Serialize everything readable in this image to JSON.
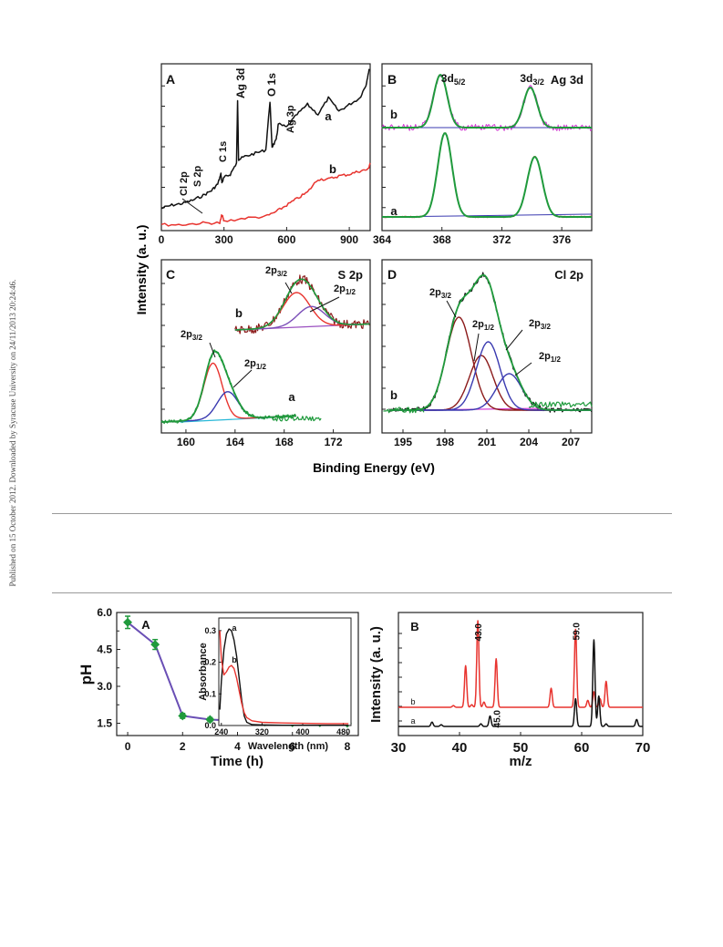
{
  "sidebar_note": "Published on 15 October 2012. Downloaded by Syracuse University on 24/11/2013 20:24:46.",
  "colors": {
    "black": "#111111",
    "red": "#e8342f",
    "green": "#1f9a3c",
    "blue": "#3a3ab0",
    "darkred": "#8b1a1a",
    "magenta": "#d43fd4",
    "purple": "#9a4fc0",
    "cyan": "#28b8d8",
    "violet": "#7b4fb8"
  },
  "chart_data": [
    {
      "panel": "A",
      "type": "line",
      "xlim": [
        0,
        1000
      ],
      "xticks": [
        0,
        300,
        600,
        900
      ],
      "series": [
        {
          "name": "a",
          "x": [
            0,
            50,
            100,
            150,
            200,
            240,
            270,
            285,
            290,
            300,
            330,
            360,
            365,
            370,
            400,
            450,
            500,
            520,
            530,
            550,
            560,
            600,
            650,
            700,
            750,
            800,
            850,
            900,
            950,
            980,
            995
          ],
          "y": [
            0.12,
            0.14,
            0.15,
            0.17,
            0.2,
            0.23,
            0.27,
            0.33,
            0.28,
            0.31,
            0.33,
            0.4,
            0.78,
            0.42,
            0.44,
            0.46,
            0.48,
            0.78,
            0.5,
            0.54,
            0.64,
            0.62,
            0.7,
            0.76,
            0.7,
            0.8,
            0.72,
            0.76,
            0.8,
            0.88,
            0.98
          ]
        },
        {
          "name": "b",
          "x": [
            0,
            100,
            200,
            280,
            290,
            300,
            400,
            500,
            550,
            600,
            650,
            700,
            750,
            800,
            850,
            900,
            950,
            990,
            1000
          ],
          "y": [
            0.02,
            0.02,
            0.03,
            0.03,
            0.08,
            0.04,
            0.06,
            0.07,
            0.1,
            0.14,
            0.18,
            0.22,
            0.3,
            0.3,
            0.32,
            0.33,
            0.35,
            0.36,
            0.4
          ]
        }
      ],
      "annotations": [
        "Cl 2p",
        "S 2p",
        "C 1s",
        "Ag 3d",
        "O 1s",
        "Ag 3p",
        "a",
        "b"
      ]
    },
    {
      "panel": "B",
      "title": "Ag 3d",
      "type": "line",
      "xlim": [
        364,
        378
      ],
      "xticks": [
        364,
        368,
        372,
        376
      ],
      "peaks": [
        {
          "curve": "b",
          "center": 367.9,
          "label": "3d",
          "sub": "5/2"
        },
        {
          "curve": "b",
          "center": 373.9,
          "label": "3d",
          "sub": "3/2"
        },
        {
          "curve": "a",
          "center": 368.2,
          "height": 0.62
        },
        {
          "curve": "a",
          "center": 374.2,
          "height": 0.44
        }
      ],
      "labels": [
        "a",
        "b"
      ]
    },
    {
      "panel": "C",
      "title": "S 2p",
      "type": "line",
      "xlim": [
        158,
        175
      ],
      "xticks": [
        160,
        164,
        168,
        172
      ],
      "peaks": [
        {
          "curve": "b",
          "center": 169.0,
          "label": "2p",
          "sub": "3/2"
        },
        {
          "curve": "b",
          "center": 170.2,
          "label": "2p",
          "sub": "1/2"
        },
        {
          "curve": "a",
          "center": 162.2,
          "label": "2p",
          "sub": "3/2"
        },
        {
          "curve": "a",
          "center": 163.4,
          "label": "2p",
          "sub": "1/2"
        }
      ],
      "labels": [
        "a",
        "b"
      ]
    },
    {
      "panel": "D",
      "title": "Cl 2p",
      "type": "line",
      "xlim": [
        193.5,
        208.5
      ],
      "xticks": [
        195,
        198,
        201,
        204,
        207
      ],
      "peaks": [
        {
          "center": 199.0,
          "label": "2p",
          "sub": "3/2"
        },
        {
          "center": 200.6,
          "label": "2p",
          "sub": "1/2"
        },
        {
          "center": 201.1,
          "label": "2p",
          "sub": "3/2"
        },
        {
          "center": 202.6,
          "label": "2p",
          "sub": "1/2"
        }
      ],
      "labels": [
        "b"
      ]
    },
    {
      "panel": "A",
      "type": "line",
      "xlabel": "Time (h)",
      "ylabel": "pH",
      "xlim": [
        -0.4,
        8.4
      ],
      "ylim": [
        1.0,
        6.0
      ],
      "xticks": [
        0,
        2,
        4,
        6,
        8
      ],
      "yticks": [
        "1.5",
        "3.0",
        "4.5",
        "6.0"
      ],
      "x": [
        0,
        1,
        2,
        3,
        4,
        5,
        6,
        7,
        8
      ],
      "y": [
        5.6,
        4.7,
        1.8,
        1.65,
        1.6,
        1.55,
        1.52,
        1.52,
        1.5
      ],
      "err": [
        0.25,
        0.2,
        0.1,
        0.08,
        0.08,
        0.06,
        0.06,
        0.06,
        0.06
      ],
      "inset": {
        "xlabel": "Wavelength (nm)",
        "ylabel": "Absorbance",
        "xlim": [
          235,
          495
        ],
        "ylim": [
          0,
          0.34
        ],
        "xticks": [
          240,
          320,
          400,
          480
        ],
        "yticks": [
          "0.0",
          "0.1",
          "0.2",
          "0.3"
        ],
        "series": [
          {
            "name": "a",
            "x": [
              237,
              240,
              245,
              250,
              255,
              260,
              265,
              270,
              275,
              280,
              285,
              290,
              300,
              320,
              360,
              400,
              450,
              490
            ],
            "y": [
              0.05,
              0.14,
              0.24,
              0.29,
              0.305,
              0.3,
              0.27,
              0.22,
              0.15,
              0.08,
              0.03,
              0.01,
              0.003,
              0.002,
              0.001,
              0.001,
              0.001,
              0.001
            ]
          },
          {
            "name": "b",
            "x": [
              237,
              240,
              245,
              250,
              255,
              260,
              265,
              270,
              275,
              280,
              285,
              290,
              300,
              320,
              360,
              400,
              450,
              490
            ],
            "y": [
              0.3,
              0.21,
              0.16,
              0.17,
              0.185,
              0.19,
              0.18,
              0.15,
              0.11,
              0.07,
              0.04,
              0.025,
              0.015,
              0.01,
              0.008,
              0.007,
              0.006,
              0.006
            ]
          }
        ]
      }
    },
    {
      "panel": "B",
      "type": "line",
      "xlabel": "m/z",
      "ylabel": "Intensity (a. u.)",
      "xlim": [
        30,
        70
      ],
      "xticks": [
        30,
        40,
        50,
        60,
        70
      ],
      "series": [
        {
          "name": "b",
          "offset": 0.16,
          "peaks": [
            [
              39,
              0.02
            ],
            [
              41,
              0.48
            ],
            [
              42,
              0.03
            ],
            [
              43,
              1.0
            ],
            [
              44,
              0.06
            ],
            [
              46,
              0.56
            ],
            [
              55,
              0.22
            ],
            [
              59,
              0.9
            ],
            [
              61,
              0.08
            ],
            [
              62,
              0.18
            ],
            [
              63,
              0.1
            ],
            [
              64,
              0.3
            ]
          ]
        },
        {
          "name": "a",
          "offset": 0.0,
          "peaks": [
            [
              35.5,
              0.05
            ],
            [
              37,
              0.02
            ],
            [
              43.5,
              0.03
            ],
            [
              45,
              0.12
            ],
            [
              59,
              0.32
            ],
            [
              62,
              1.0
            ],
            [
              62.8,
              0.35
            ],
            [
              64,
              0.03
            ],
            [
              69,
              0.08
            ]
          ]
        }
      ],
      "annotations": [
        "43.0",
        "59.0",
        "45.0"
      ]
    }
  ],
  "xps_axis": {
    "ylabel": "Intensity (a. u.)",
    "xlabel": "Binding Energy (eV)"
  }
}
